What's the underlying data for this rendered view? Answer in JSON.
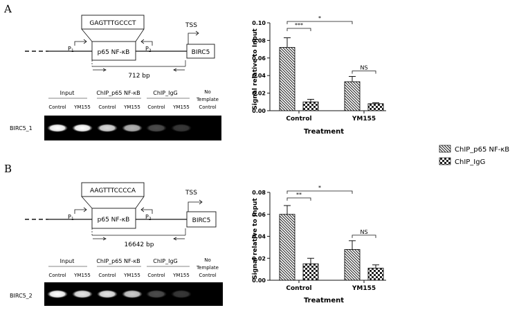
{
  "panels": [
    {
      "letter": "A",
      "diagram": {
        "sequence": "GAGTTTGCCCT",
        "factor": "p65 NF-κB",
        "primer1": "P",
        "primer1_sub": "1",
        "primer2": "P",
        "primer2_sub": "2",
        "tss": "TSS",
        "gene": "BIRC5",
        "size": "712 bp"
      },
      "gel": {
        "groups": [
          "Input",
          "ChIP_p65 NF-κB",
          "ChIP_IgG"
        ],
        "no_template": [
          "No",
          "Template",
          "Control"
        ],
        "lanes": [
          "Control",
          "YM155",
          "Control",
          "YM155",
          "Control",
          "YM155"
        ],
        "row_label": "BIRC5_1",
        "band_intensity": [
          1.0,
          1.0,
          0.85,
          0.7,
          0.3,
          0.22,
          0.0
        ]
      }
    },
    {
      "letter": "B",
      "diagram": {
        "sequence": "AAGTTTCCCCA",
        "factor": "p65 NF-κB",
        "primer1": "P",
        "primer1_sub": "1",
        "primer2": "P",
        "primer2_sub": "2",
        "tss": "TSS",
        "gene": "BIRC5",
        "size": "16642 bp"
      },
      "gel": {
        "groups": [
          "Input",
          "ChIP_p65 NF-κB",
          "ChIP_IgG"
        ],
        "no_template": [
          "No",
          "Template",
          "Control"
        ],
        "lanes": [
          "Control",
          "YM155",
          "Control",
          "YM155",
          "Control",
          "YM155"
        ],
        "row_label": "BIRC5_2",
        "band_intensity": [
          1.0,
          0.9,
          0.9,
          0.8,
          0.3,
          0.22,
          0.0
        ]
      }
    }
  ],
  "legend": {
    "items": [
      {
        "label": "ChIP_p65 NF-κB",
        "pattern": "hatch"
      },
      {
        "label": "ChIP_IgG",
        "pattern": "check"
      }
    ]
  },
  "chart_data": [
    {
      "type": "bar",
      "categories": [
        "Control",
        "YM155"
      ],
      "series": [
        {
          "name": "ChIP_p65 NF-κB",
          "values": [
            0.072,
            0.033
          ],
          "errors": [
            0.011,
            0.006
          ]
        },
        {
          "name": "ChIP_IgG",
          "values": [
            0.01,
            0.008
          ],
          "errors": [
            0.003,
            0.001
          ]
        }
      ],
      "xlabel": "Treatment",
      "ylabel": "Signal relative to Input",
      "ylim": [
        0,
        0.1
      ],
      "yticks": [
        "0.00",
        "0.02",
        "0.04",
        "0.06",
        "0.08",
        "0.10"
      ],
      "annotations": [
        {
          "text": "***",
          "between": "Control p65 vs Control IgG"
        },
        {
          "text": "*",
          "between": "Control p65 vs YM155 p65"
        },
        {
          "text": "NS",
          "between": "YM155 p65 vs YM155 IgG"
        }
      ]
    },
    {
      "type": "bar",
      "categories": [
        "Control",
        "YM155"
      ],
      "series": [
        {
          "name": "ChIP_p65 NF-κB",
          "values": [
            0.06,
            0.028
          ],
          "errors": [
            0.008,
            0.008
          ]
        },
        {
          "name": "ChIP_IgG",
          "values": [
            0.015,
            0.011
          ],
          "errors": [
            0.005,
            0.003
          ]
        }
      ],
      "xlabel": "Treatment",
      "ylabel": "Signal relative to Input",
      "ylim": [
        0,
        0.08
      ],
      "yticks": [
        "0.00",
        "0.02",
        "0.04",
        "0.06",
        "0.08"
      ],
      "annotations": [
        {
          "text": "**",
          "between": "Control p65 vs Control IgG"
        },
        {
          "text": "*",
          "between": "Control p65 vs YM155 p65"
        },
        {
          "text": "NS",
          "between": "YM155 p65 vs YM155 IgG"
        }
      ]
    }
  ]
}
